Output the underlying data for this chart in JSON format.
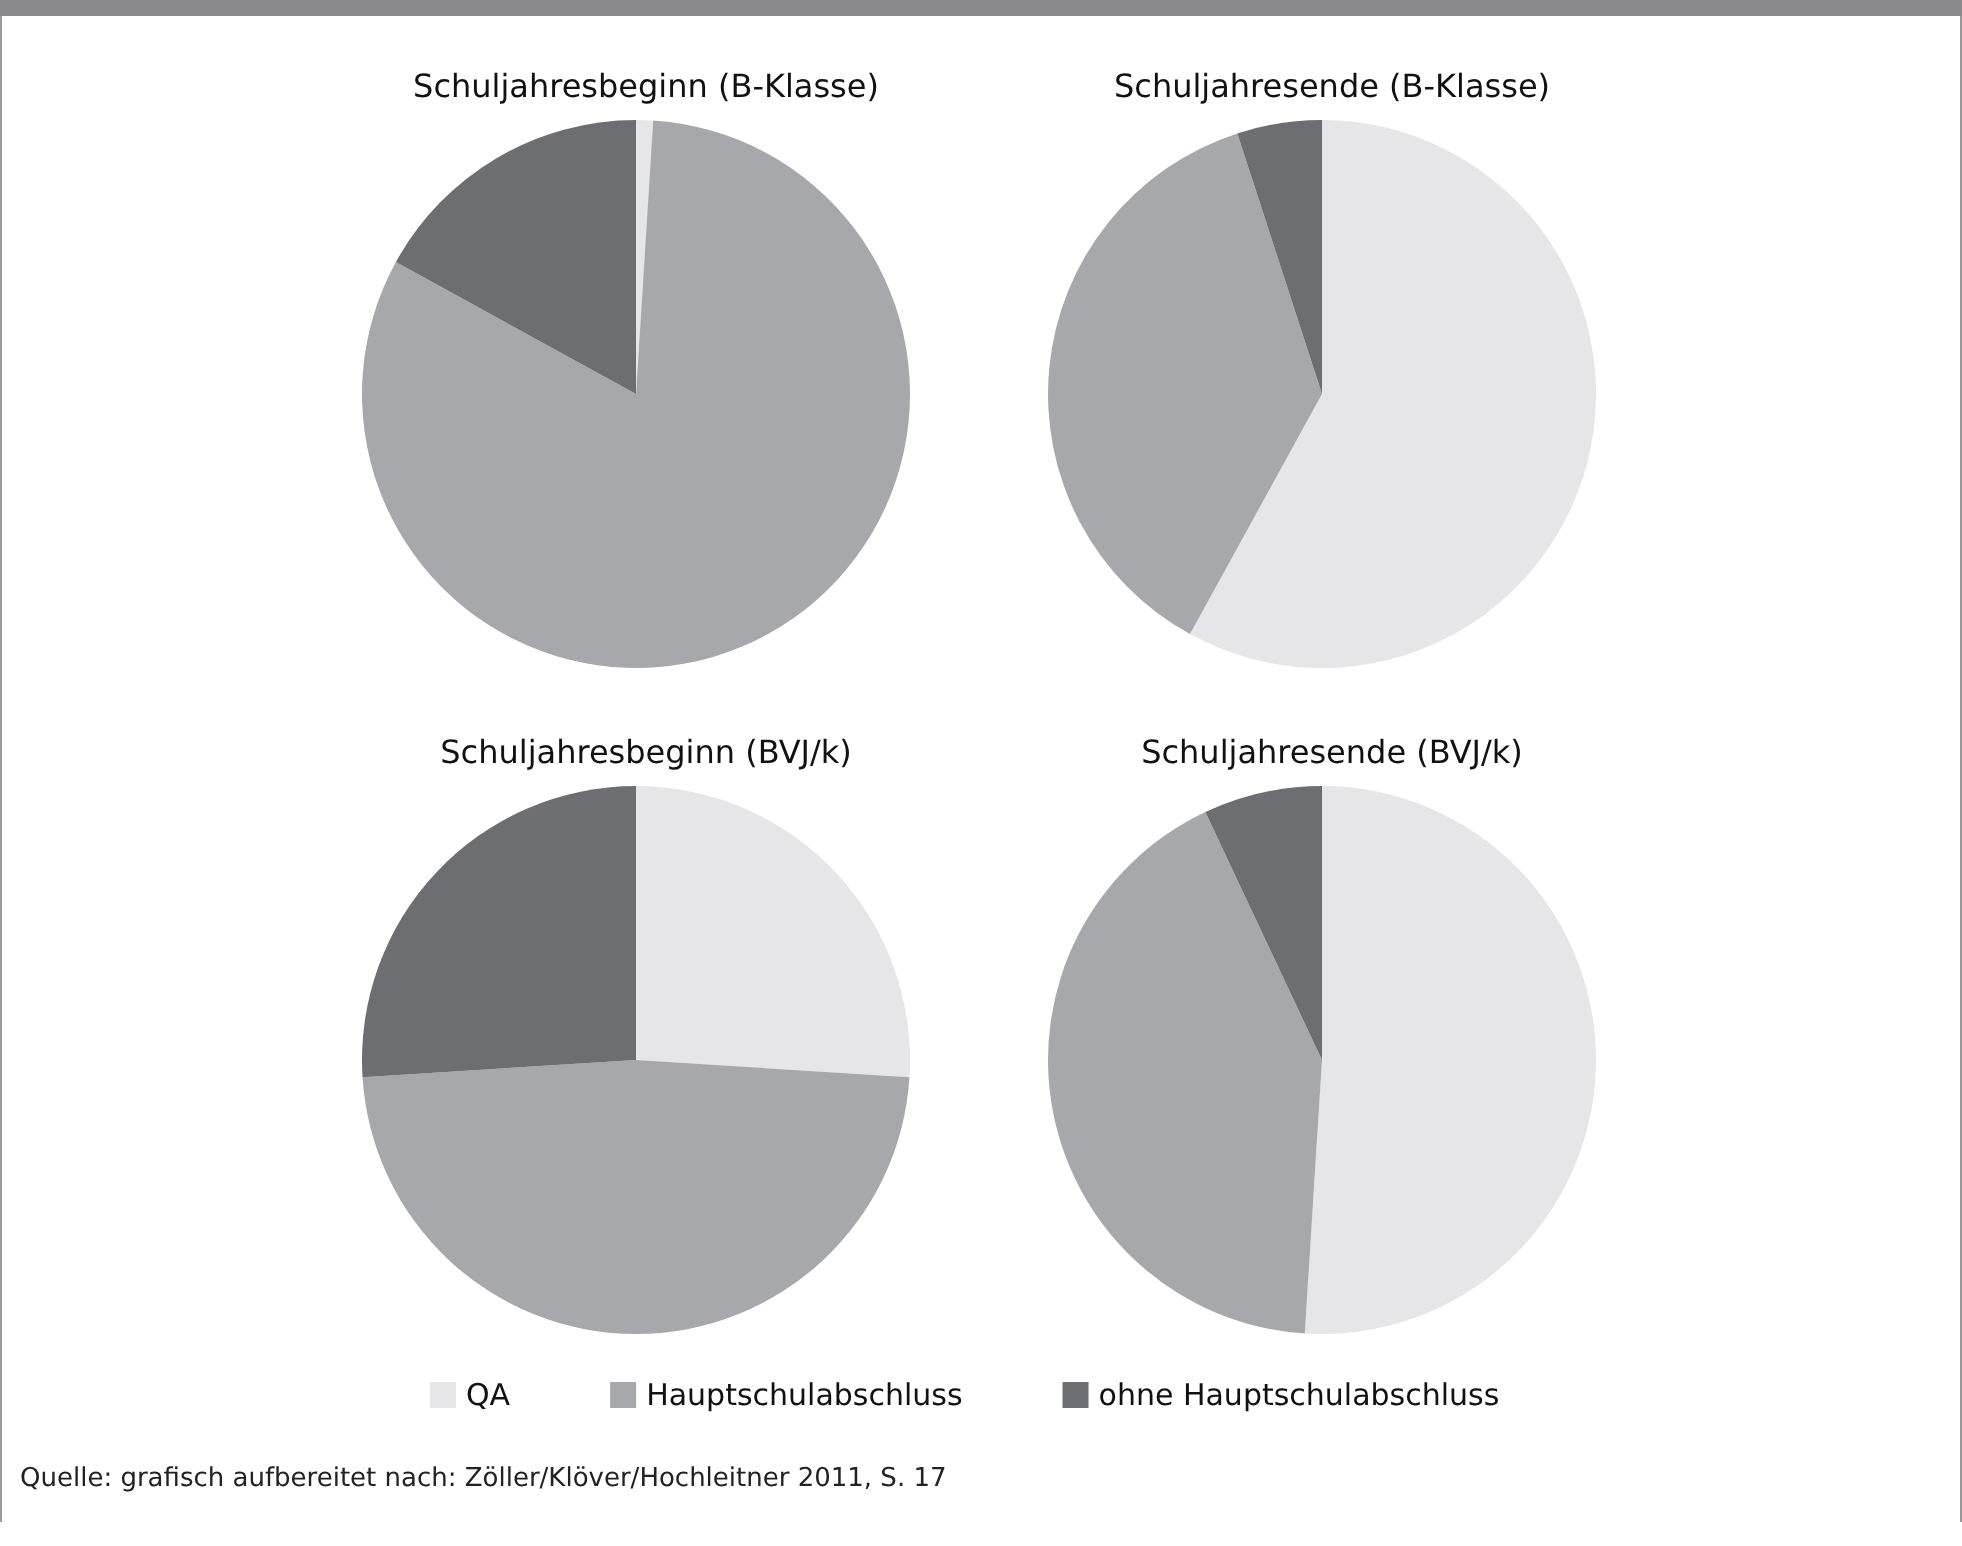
{
  "chart_data": [
    {
      "type": "pie",
      "title": "Schuljahresbeginn (B-Klasse)",
      "categories": [
        null,
        null,
        null
      ],
      "values": [
        1,
        82,
        17
      ],
      "colors": [
        "#e6e6e8",
        "#a7a8ab",
        "#6d6e72"
      ],
      "legend": false
    },
    {
      "type": "pie",
      "title": "Schuljahresende (B-Klasse)",
      "categories": [
        null,
        null,
        null
      ],
      "values": [
        58,
        37,
        5
      ],
      "colors": [
        "#e6e6e8",
        "#a7a8ab",
        "#6d6e72"
      ],
      "legend": false
    },
    {
      "type": "pie",
      "title": "Schuljahresbeginn (BVJ/k)",
      "categories": [
        null,
        null,
        null
      ],
      "values": [
        26,
        48,
        26
      ],
      "colors": [
        "#e6e6e8",
        "#a7a8ab",
        "#6d6e72"
      ],
      "legend": false
    },
    {
      "type": "pie",
      "title": "Schuljahresende (BVJ/k)",
      "categories": [
        "QA",
        "Hauptschulabschluss",
        "ohne Hauptschulabschluss"
      ],
      "values": [
        51,
        42,
        7
      ],
      "colors": [
        "#e6e6e8",
        "#a7a8ab",
        "#6d6e72"
      ],
      "legend": "bottom",
      "annotations": [
        "Quelle: grafisch aufbereitet nach: Zöller/Klöver/Hochleitner 2011, S. 17"
      ]
    }
  ]
}
